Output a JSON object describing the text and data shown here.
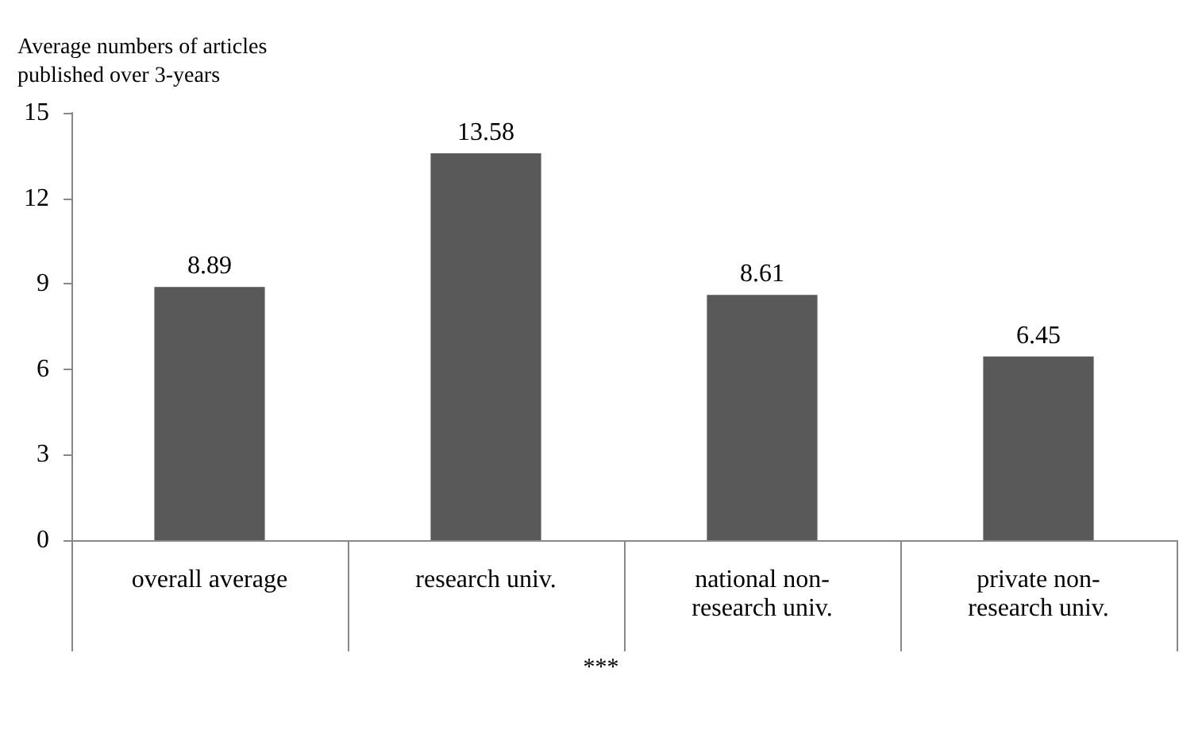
{
  "chart_data": {
    "type": "bar",
    "ylabel": "Average numbers of articles published over 3-years",
    "categories": [
      "overall average",
      "research univ.",
      "national non-research univ.",
      "private non-research univ."
    ],
    "values": [
      8.89,
      13.58,
      8.61,
      6.45
    ],
    "color": "#595959",
    "data_labels": true,
    "ylim": [
      0,
      15
    ],
    "yticks": [
      0,
      3,
      6,
      9,
      12,
      15
    ],
    "grid": false,
    "annotations": [
      "***"
    ]
  }
}
